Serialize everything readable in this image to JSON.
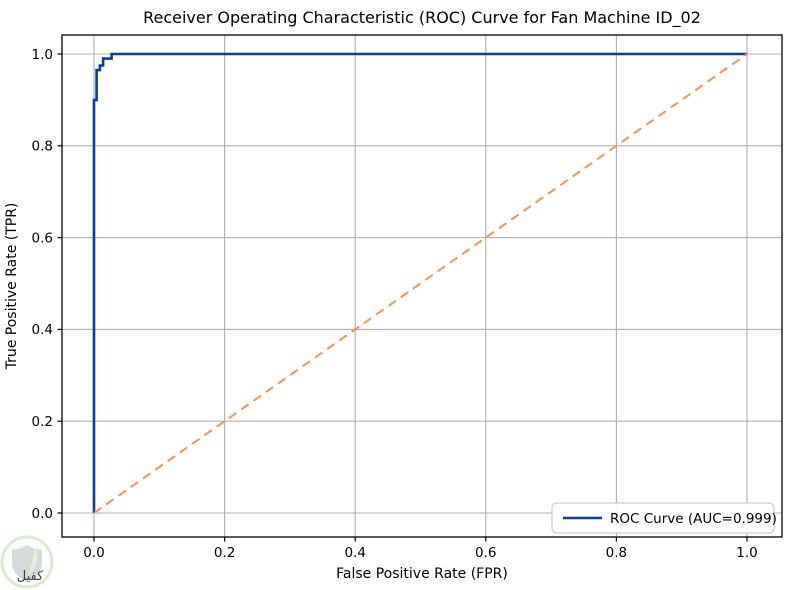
{
  "figure": {
    "title": "Receiver Operating Characteristic (ROC) Curve for Fan Machine ID_02",
    "background_color": "#ffffff"
  },
  "chart_data": {
    "type": "line",
    "title": "Receiver Operating Characteristic (ROC) Curve for Fan Machine ID_02",
    "xlabel": "False Positive Rate (FPR)",
    "ylabel": "True Positive Rate (TPR)",
    "xlim": [
      -0.05,
      1.05
    ],
    "ylim": [
      -0.05,
      1.05
    ],
    "grid": true,
    "grid_color": "#b0b0b0",
    "spine_color": "#000000",
    "xticks": {
      "values": [
        0.0,
        0.2,
        0.4,
        0.6,
        0.8,
        1.0
      ],
      "labels": [
        "0.0",
        "0.2",
        "0.4",
        "0.6",
        "0.8",
        "1.0"
      ]
    },
    "yticks": {
      "values": [
        0.0,
        0.2,
        0.4,
        0.6,
        0.8,
        1.0
      ],
      "labels": [
        "0.0",
        "0.2",
        "0.4",
        "0.6",
        "0.8",
        "1.0"
      ]
    },
    "series": [
      {
        "name": "ROC Curve (AUC=0.999)",
        "color": "#0b3d9b",
        "line_style": "solid",
        "line_width": 2.6,
        "points": [
          [
            0,
            0
          ],
          [
            0,
            0.9
          ],
          [
            0.004,
            0.9
          ],
          [
            0.004,
            0.965
          ],
          [
            0.009,
            0.965
          ],
          [
            0.009,
            0.975
          ],
          [
            0.014,
            0.975
          ],
          [
            0.014,
            0.99
          ],
          [
            0.027,
            0.99
          ],
          [
            0.027,
            1.0
          ],
          [
            1.0,
            1.0
          ]
        ]
      },
      {
        "name": "Chance diagonal",
        "color": "#f49353",
        "line_style": "dashed",
        "line_width": 2,
        "points": [
          [
            0,
            0
          ],
          [
            1.0,
            1.0
          ]
        ]
      }
    ],
    "auc": 0.999,
    "legend": {
      "position": "lower right",
      "entries": [
        {
          "label": "ROC Curve (AUC=0.999)",
          "color": "#0b3d9b"
        }
      ],
      "border_color": "#cccccc",
      "background_color": "#ffffff"
    }
  },
  "watermark": {
    "text": "كفيل",
    "ring_color": "#cfe5c2",
    "shield_color": "#c6d0cd",
    "leaf_color": "#dcead2",
    "vein_color": "#b9d6ab",
    "text_color": "#d1a678"
  }
}
